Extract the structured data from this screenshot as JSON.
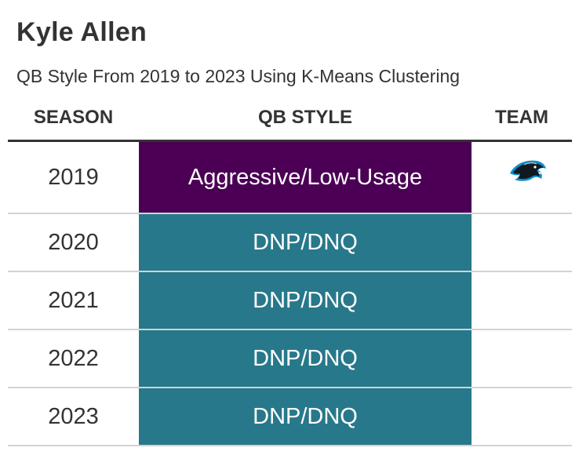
{
  "chart_data": {
    "type": "table",
    "title": "Kyle Allen",
    "subtitle": "QB Style From 2019 to 2023 Using K-Means Clustering",
    "columns": [
      "SEASON",
      "QB STYLE",
      "TEAM"
    ],
    "rows": [
      {
        "season": "2019",
        "qb_style": "Aggressive/Low-Usage",
        "style_color": "#4b0055",
        "team_icon": "carolina-panthers-logo-icon"
      },
      {
        "season": "2020",
        "qb_style": "DNP/DNQ",
        "style_color": "#27788a",
        "team_icon": ""
      },
      {
        "season": "2021",
        "qb_style": "DNP/DNQ",
        "style_color": "#27788a",
        "team_icon": ""
      },
      {
        "season": "2022",
        "qb_style": "DNP/DNQ",
        "style_color": "#27788a",
        "team_icon": ""
      },
      {
        "season": "2023",
        "qb_style": "DNP/DNQ",
        "style_color": "#27788a",
        "team_icon": ""
      }
    ]
  }
}
